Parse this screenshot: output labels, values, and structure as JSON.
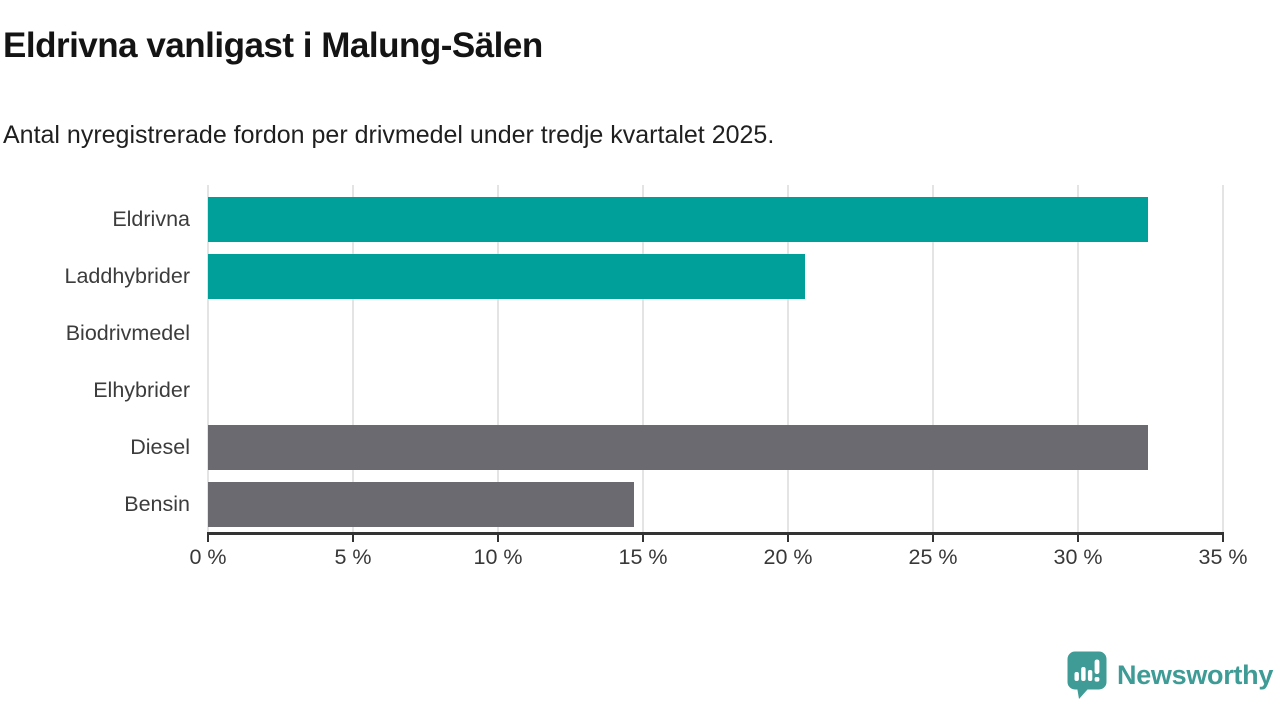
{
  "header": {
    "title": "Eldrivna vanligast i Malung-Sälen",
    "subtitle": "Antal nyregistrerade fordon per drivmedel under tredje kvartalet 2025."
  },
  "chart_data": {
    "type": "bar",
    "orientation": "horizontal",
    "title": "Eldrivna vanligast i Malung-Sälen",
    "subtitle": "Antal nyregistrerade fordon per drivmedel under tredje kvartalet 2025.",
    "categories": [
      "Eldrivna",
      "Laddhybrider",
      "Biodrivmedel",
      "Elhybrider",
      "Diesel",
      "Bensin"
    ],
    "values": [
      32.4,
      20.6,
      0,
      0,
      32.4,
      14.7
    ],
    "unit": "%",
    "bar_colors": [
      "#00a09a",
      "#00a09a",
      "#00a09a",
      "#00a09a",
      "#6b6a70",
      "#6b6a70"
    ],
    "xlim": [
      0,
      35
    ],
    "x_ticks": [
      0,
      5,
      10,
      15,
      20,
      25,
      30,
      35
    ],
    "x_tick_labels": [
      "0 %",
      "5 %",
      "10 %",
      "15 %",
      "20 %",
      "25 %",
      "30 %",
      "35 %"
    ],
    "grid": "vertical-gridlines",
    "legend": "none",
    "data_labels": "none"
  },
  "footer": {
    "brand": "Newsworthy",
    "brand_color": "#3f9b95",
    "logo_icon": "speech-bubble-chart-icon"
  },
  "colors": {
    "bar_teal": "#00a09a",
    "bar_gray": "#6b6a70",
    "axis": "#333333",
    "gridline": "#e4e4e4",
    "brand_teal": "#3f9b95"
  }
}
